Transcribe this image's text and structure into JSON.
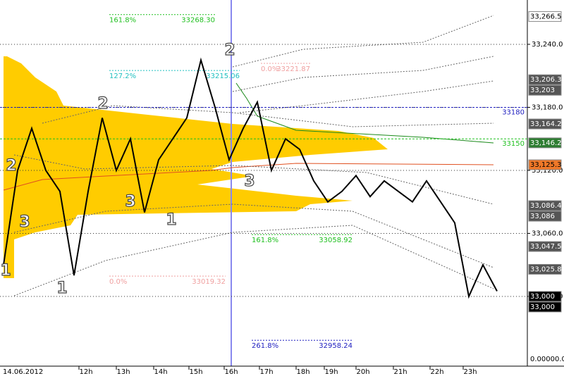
{
  "chart_data": {
    "type": "line",
    "date_label": "14.06.2012",
    "time_labels": [
      "12h",
      "13h",
      "14h",
      "15h",
      "16h",
      "17h",
      "18h",
      "19h",
      "20h",
      "21h",
      "22h",
      "23h"
    ],
    "ylim": [
      32933.6,
      33282.2
    ],
    "yticks": [
      {
        "value": 33240,
        "label": "33,240.0"
      },
      {
        "value": 33180,
        "label": "33,180.0"
      },
      {
        "value": 33120,
        "label": "33,120.0"
      },
      {
        "value": 33060,
        "label": "33,060.0"
      },
      {
        "value": 33000,
        "label": "33,000.0"
      }
    ],
    "grid": true,
    "series": [
      {
        "name": "Price",
        "color": "#000000",
        "values": [
          33030,
          33120,
          33160,
          33120,
          33100,
          33020,
          33100,
          33170,
          33120,
          33150,
          33080,
          33130,
          33150,
          33170,
          33225,
          33180,
          33130,
          33160,
          33185,
          33120,
          33150,
          33140,
          33110,
          33090,
          33100,
          33115,
          33095,
          33110,
          33100,
          33090,
          33110,
          33090,
          33070,
          33000,
          33030,
          33005
        ]
      }
    ],
    "price_tags": [
      {
        "value": 33266.5,
        "label": "33,266.5",
        "bg": "#ffffff",
        "fg": "#000000"
      },
      {
        "value": 33206.3,
        "label": "33,206.3",
        "bg": "#555555",
        "fg": "#ffffff"
      },
      {
        "value": 33203,
        "label": "33,203",
        "bg": "#555555",
        "fg": "#ffffff"
      },
      {
        "value": 33164.2,
        "label": "33,164.2",
        "bg": "#555555",
        "fg": "#ffffff"
      },
      {
        "value": 33146.2,
        "label": "33,146.2",
        "bg": "#2e7d32",
        "fg": "#ffffff"
      },
      {
        "value": 33125.3,
        "label": "33,125.3",
        "bg": "#f07828",
        "fg": "#000000"
      },
      {
        "value": 33086.4,
        "label": "33,086.4",
        "bg": "#555555",
        "fg": "#ffffff"
      },
      {
        "value": 33086,
        "label": "33,086",
        "bg": "#555555",
        "fg": "#ffffff"
      },
      {
        "value": 33047.5,
        "label": "33,047.5",
        "bg": "#555555",
        "fg": "#ffffff"
      },
      {
        "value": 33025.8,
        "label": "33,025.8",
        "bg": "#555555",
        "fg": "#ffffff"
      },
      {
        "value": 33000,
        "label": "33,000",
        "bg": "#000000",
        "fg": "#ffffff"
      },
      {
        "value": 33000,
        "label": "33,000",
        "bg": "#000000",
        "fg": "#ffffff"
      }
    ],
    "bottom_tag": "0.00000.0",
    "levels": [
      {
        "value": 33180,
        "label": "33180",
        "color": "#2020c0"
      },
      {
        "value": 33150,
        "label": "33150",
        "color": "#20c020"
      }
    ],
    "fib_levels": [
      {
        "pct": "161.8%",
        "price": {
          "value": 33268.3,
          "label": "33268.30"
        },
        "color": "#20c020"
      },
      {
        "pct": "127.2%",
        "price": {
          "value": 33215.06,
          "label": "33215.06"
        },
        "color": "#20c0c0"
      },
      {
        "pct": "0.0%",
        "price": {
          "value": 33221.87,
          "label": "33221.87"
        },
        "color": "#f0a0a0"
      },
      {
        "pct": "161.8%",
        "price": {
          "value": 33058.92,
          "label": "33058.92"
        },
        "color": "#20c020"
      },
      {
        "pct": "0.0%",
        "price": {
          "value": 33019.32,
          "label": "33019.32"
        },
        "color": "#f0a0a0"
      },
      {
        "pct": "261.8%",
        "price": {
          "value": 32958.24,
          "label": "32958.24"
        },
        "color": "#2020c0"
      }
    ],
    "wave_labels": [
      "1",
      "2",
      "3",
      "1",
      "2",
      "3",
      "1",
      "2",
      "3"
    ]
  }
}
